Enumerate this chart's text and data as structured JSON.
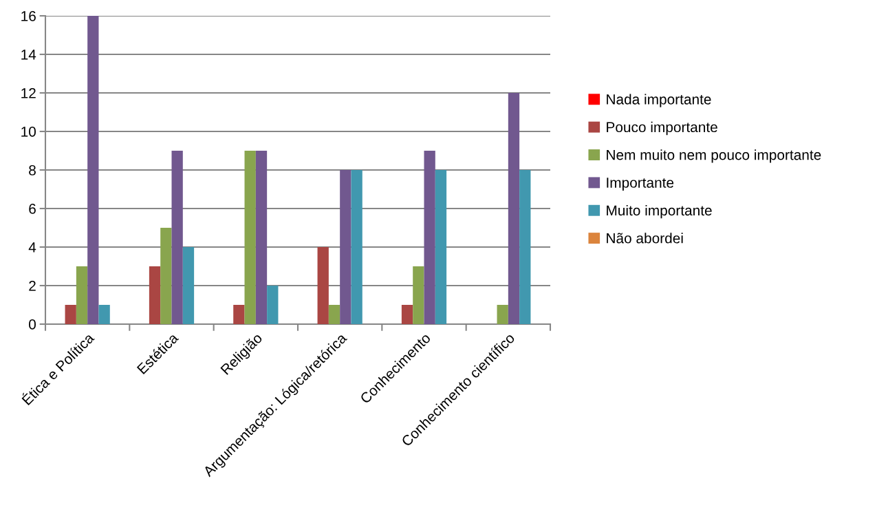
{
  "chart_data": {
    "type": "bar",
    "categories": [
      "Ética e Política",
      "Estética",
      "Religião",
      "Argumentação: Lógica/retórica",
      "Conhecimento",
      "Conhecimento científico"
    ],
    "series": [
      {
        "name": "Nada importante",
        "color": "#ff0000",
        "values": [
          0,
          0,
          0,
          0,
          0,
          0
        ]
      },
      {
        "name": "Pouco importante",
        "color": "#aa4643",
        "values": [
          1,
          3,
          1,
          4,
          1,
          0
        ]
      },
      {
        "name": "Nem muito nem pouco importante",
        "color": "#89a54e",
        "values": [
          3,
          5,
          9,
          1,
          3,
          1
        ]
      },
      {
        "name": "Importante",
        "color": "#71588f",
        "values": [
          16,
          9,
          9,
          8,
          9,
          12
        ]
      },
      {
        "name": "Muito importante",
        "color": "#4198af",
        "values": [
          1,
          4,
          2,
          8,
          8,
          8
        ]
      },
      {
        "name": "Não abordei",
        "color": "#db843d",
        "values": [
          0,
          0,
          0,
          0,
          0,
          0
        ]
      }
    ],
    "ylim": [
      0,
      16
    ],
    "yticks": [
      0,
      2,
      4,
      6,
      8,
      10,
      12,
      14,
      16
    ],
    "grid": "y",
    "legend": "right"
  }
}
